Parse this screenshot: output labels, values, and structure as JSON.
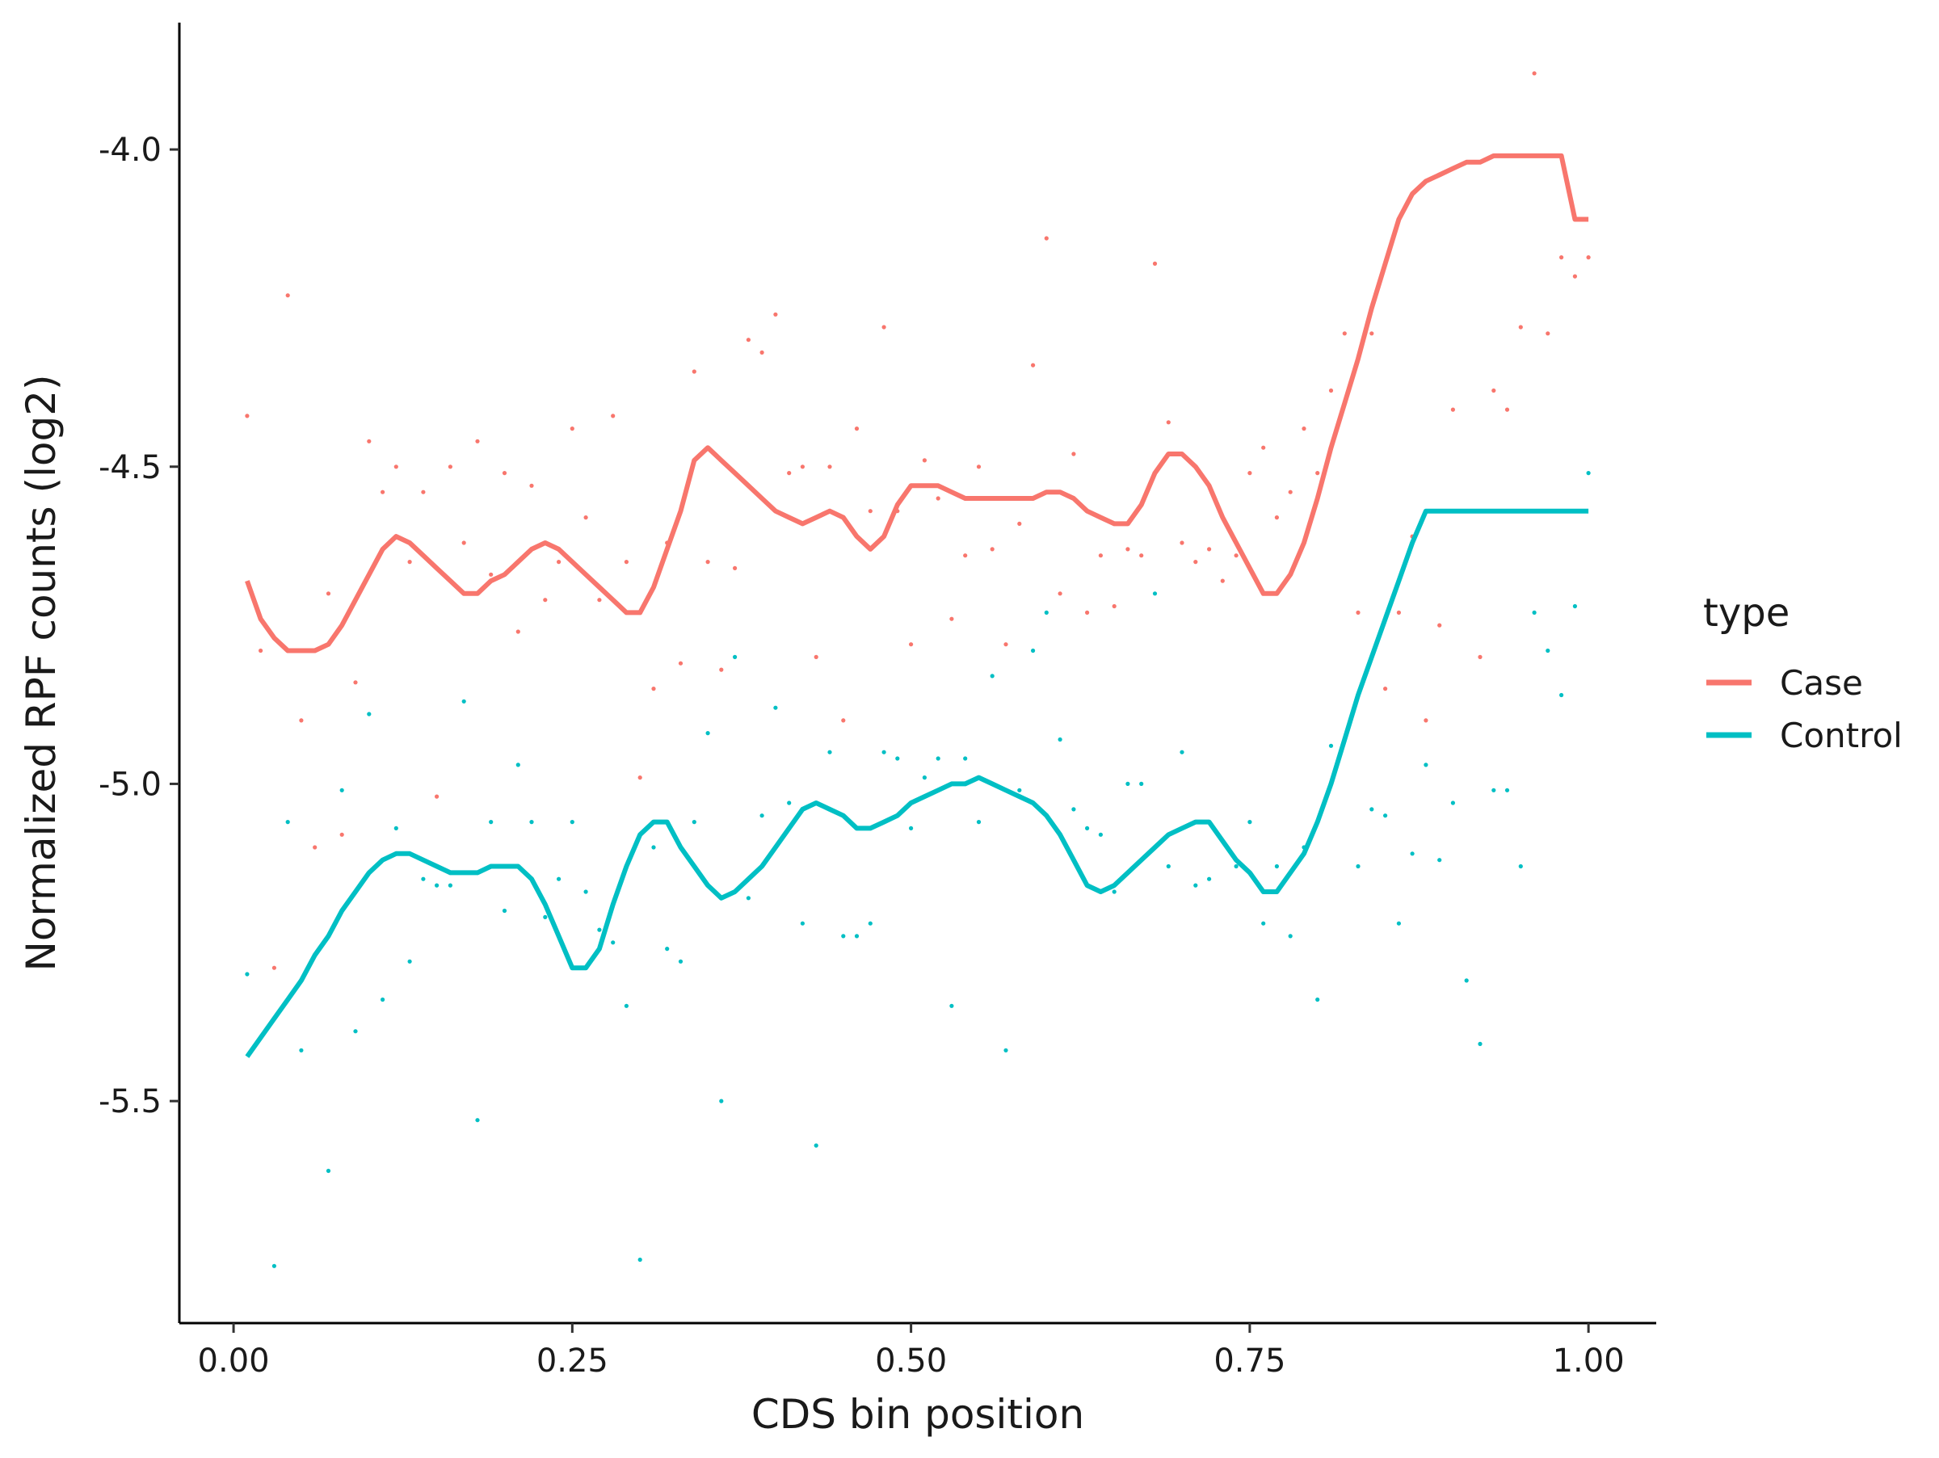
{
  "chart_data": {
    "type": "line",
    "xlabel": "CDS bin position",
    "ylabel": "Normalized RPF counts (log2)",
    "xlim": [
      -0.04,
      1.05
    ],
    "ylim": [
      -5.85,
      -3.8
    ],
    "x_ticks": [
      0.0,
      0.25,
      0.5,
      0.75,
      1.0
    ],
    "x_tick_labels": [
      "0.00",
      "0.25",
      "0.50",
      "0.75",
      "1.00"
    ],
    "y_ticks": [
      -5.5,
      -5.0,
      -4.5,
      -4.0
    ],
    "y_tick_labels": [
      "-5.5",
      "-5.0",
      "-4.5",
      "-4.0"
    ],
    "grid": false,
    "legend": {
      "title": "type",
      "position": "right",
      "entries": [
        "Case",
        "Control"
      ]
    },
    "series": [
      {
        "name": "Case",
        "color": "#F8766D",
        "line": {
          "x": [
            0.01,
            0.02,
            0.03,
            0.04,
            0.05,
            0.06,
            0.07,
            0.08,
            0.09,
            0.1,
            0.11,
            0.12,
            0.13,
            0.14,
            0.15,
            0.16,
            0.17,
            0.18,
            0.19,
            0.2,
            0.21,
            0.22,
            0.23,
            0.24,
            0.25,
            0.26,
            0.27,
            0.28,
            0.29,
            0.3,
            0.31,
            0.32,
            0.33,
            0.34,
            0.35,
            0.36,
            0.37,
            0.38,
            0.39,
            0.4,
            0.41,
            0.42,
            0.43,
            0.44,
            0.45,
            0.46,
            0.47,
            0.48,
            0.49,
            0.5,
            0.51,
            0.52,
            0.53,
            0.54,
            0.55,
            0.56,
            0.57,
            0.58,
            0.59,
            0.6,
            0.61,
            0.62,
            0.63,
            0.64,
            0.65,
            0.66,
            0.67,
            0.68,
            0.69,
            0.7,
            0.71,
            0.72,
            0.73,
            0.74,
            0.75,
            0.76,
            0.77,
            0.78,
            0.79,
            0.8,
            0.81,
            0.82,
            0.83,
            0.84,
            0.85,
            0.86,
            0.87,
            0.88,
            0.89,
            0.9,
            0.91,
            0.92,
            0.93,
            0.94,
            0.95,
            0.96,
            0.97,
            0.98,
            0.99,
            1.0
          ],
          "y": [
            -4.68,
            -4.74,
            -4.77,
            -4.79,
            -4.79,
            -4.79,
            -4.78,
            -4.75,
            -4.71,
            -4.67,
            -4.63,
            -4.61,
            -4.62,
            -4.64,
            -4.66,
            -4.68,
            -4.7,
            -4.7,
            -4.68,
            -4.67,
            -4.65,
            -4.63,
            -4.62,
            -4.63,
            -4.65,
            -4.67,
            -4.69,
            -4.71,
            -4.73,
            -4.73,
            -4.69,
            -4.63,
            -4.57,
            -4.49,
            -4.47,
            -4.49,
            -4.51,
            -4.53,
            -4.55,
            -4.57,
            -4.58,
            -4.59,
            -4.58,
            -4.57,
            -4.58,
            -4.61,
            -4.63,
            -4.61,
            -4.56,
            -4.53,
            -4.53,
            -4.53,
            -4.54,
            -4.55,
            -4.55,
            -4.55,
            -4.55,
            -4.55,
            -4.55,
            -4.54,
            -4.54,
            -4.55,
            -4.57,
            -4.58,
            -4.59,
            -4.59,
            -4.56,
            -4.51,
            -4.48,
            -4.48,
            -4.5,
            -4.53,
            -4.58,
            -4.62,
            -4.66,
            -4.7,
            -4.7,
            -4.67,
            -4.62,
            -4.55,
            -4.47,
            -4.4,
            -4.33,
            -4.25,
            -4.18,
            -4.11,
            -4.07,
            -4.05,
            -4.04,
            -4.03,
            -4.02,
            -4.02,
            -4.01,
            -4.01,
            -4.01,
            -4.01,
            -4.01,
            -4.01,
            -4.11,
            -4.11
          ]
        },
        "points": {
          "x": [
            0.01,
            0.02,
            0.03,
            0.04,
            0.05,
            0.06,
            0.07,
            0.08,
            0.09,
            0.1,
            0.11,
            0.12,
            0.13,
            0.14,
            0.15,
            0.16,
            0.17,
            0.18,
            0.19,
            0.2,
            0.21,
            0.22,
            0.23,
            0.24,
            0.25,
            0.26,
            0.27,
            0.28,
            0.29,
            0.3,
            0.31,
            0.32,
            0.33,
            0.34,
            0.35,
            0.36,
            0.37,
            0.38,
            0.39,
            0.4,
            0.41,
            0.42,
            0.43,
            0.44,
            0.45,
            0.46,
            0.47,
            0.48,
            0.49,
            0.5,
            0.51,
            0.52,
            0.53,
            0.54,
            0.55,
            0.56,
            0.57,
            0.58,
            0.59,
            0.6,
            0.61,
            0.62,
            0.63,
            0.64,
            0.65,
            0.66,
            0.67,
            0.68,
            0.69,
            0.7,
            0.71,
            0.72,
            0.73,
            0.74,
            0.75,
            0.76,
            0.77,
            0.78,
            0.79,
            0.8,
            0.81,
            0.82,
            0.83,
            0.84,
            0.85,
            0.86,
            0.87,
            0.88,
            0.89,
            0.9,
            0.91,
            0.92,
            0.93,
            0.94,
            0.95,
            0.96,
            0.97,
            0.98,
            0.99,
            1.0
          ],
          "y": [
            -4.42,
            -4.79,
            -5.29,
            -4.23,
            -4.9,
            -5.1,
            -4.7,
            -5.08,
            -4.84,
            -4.46,
            -4.54,
            -4.5,
            -4.65,
            -4.54,
            -5.02,
            -4.5,
            -4.62,
            -4.46,
            -4.67,
            -4.51,
            -4.76,
            -4.53,
            -4.71,
            -4.65,
            -4.44,
            -4.58,
            -4.71,
            -4.42,
            -4.65,
            -4.99,
            -4.85,
            -4.62,
            -4.81,
            -4.35,
            -4.65,
            -4.82,
            -4.66,
            -4.3,
            -4.32,
            -4.26,
            -4.51,
            -4.5,
            -4.8,
            -4.5,
            -4.9,
            -4.44,
            -4.57,
            -4.28,
            -4.57,
            -4.78,
            -4.49,
            -4.55,
            -4.74,
            -4.64,
            -4.5,
            -4.63,
            -4.78,
            -4.59,
            -4.34,
            -4.14,
            -4.7,
            -4.48,
            -4.73,
            -4.64,
            -4.72,
            -4.63,
            -4.64,
            -4.18,
            -4.43,
            -4.62,
            -4.65,
            -4.63,
            -4.68,
            -4.64,
            -4.51,
            -4.47,
            -4.58,
            -4.54,
            -4.44,
            -4.51,
            -4.38,
            -4.29,
            -4.73,
            -4.29,
            -4.85,
            -4.73,
            -4.61,
            -4.9,
            -4.75,
            -4.41,
            -4.57,
            -4.8,
            -4.38,
            -4.41,
            -4.28,
            -3.88,
            -4.29,
            -4.17,
            -4.2,
            -4.17
          ]
        }
      },
      {
        "name": "Control",
        "color": "#00BFC4",
        "line": {
          "x": [
            0.01,
            0.02,
            0.03,
            0.04,
            0.05,
            0.06,
            0.07,
            0.08,
            0.09,
            0.1,
            0.11,
            0.12,
            0.13,
            0.14,
            0.15,
            0.16,
            0.17,
            0.18,
            0.19,
            0.2,
            0.21,
            0.22,
            0.23,
            0.24,
            0.25,
            0.26,
            0.27,
            0.28,
            0.29,
            0.3,
            0.31,
            0.32,
            0.33,
            0.34,
            0.35,
            0.36,
            0.37,
            0.38,
            0.39,
            0.4,
            0.41,
            0.42,
            0.43,
            0.44,
            0.45,
            0.46,
            0.47,
            0.48,
            0.49,
            0.5,
            0.51,
            0.52,
            0.53,
            0.54,
            0.55,
            0.56,
            0.57,
            0.58,
            0.59,
            0.6,
            0.61,
            0.62,
            0.63,
            0.64,
            0.65,
            0.66,
            0.67,
            0.68,
            0.69,
            0.7,
            0.71,
            0.72,
            0.73,
            0.74,
            0.75,
            0.76,
            0.77,
            0.78,
            0.79,
            0.8,
            0.81,
            0.82,
            0.83,
            0.84,
            0.85,
            0.86,
            0.87,
            0.88,
            0.89,
            0.9,
            0.91,
            0.92,
            0.93,
            0.94,
            0.95,
            0.96,
            0.97,
            0.98,
            0.99,
            1.0
          ],
          "y": [
            -5.43,
            -5.4,
            -5.37,
            -5.34,
            -5.31,
            -5.27,
            -5.24,
            -5.2,
            -5.17,
            -5.14,
            -5.12,
            -5.11,
            -5.11,
            -5.12,
            -5.13,
            -5.14,
            -5.14,
            -5.14,
            -5.13,
            -5.13,
            -5.13,
            -5.15,
            -5.19,
            -5.24,
            -5.29,
            -5.29,
            -5.26,
            -5.19,
            -5.13,
            -5.08,
            -5.06,
            -5.06,
            -5.1,
            -5.13,
            -5.16,
            -5.18,
            -5.17,
            -5.15,
            -5.13,
            -5.1,
            -5.07,
            -5.04,
            -5.03,
            -5.04,
            -5.05,
            -5.07,
            -5.07,
            -5.06,
            -5.05,
            -5.03,
            -5.02,
            -5.01,
            -5.0,
            -5.0,
            -4.99,
            -5.0,
            -5.01,
            -5.02,
            -5.03,
            -5.05,
            -5.08,
            -5.12,
            -5.16,
            -5.17,
            -5.16,
            -5.14,
            -5.12,
            -5.1,
            -5.08,
            -5.07,
            -5.06,
            -5.06,
            -5.09,
            -5.12,
            -5.14,
            -5.17,
            -5.17,
            -5.14,
            -5.11,
            -5.06,
            -5.0,
            -4.93,
            -4.86,
            -4.8,
            -4.74,
            -4.68,
            -4.62,
            -4.57,
            -4.57,
            -4.57,
            -4.57,
            -4.57,
            -4.57,
            -4.57,
            -4.57,
            -4.57,
            -4.57,
            -4.57,
            -4.57,
            -4.57
          ]
        },
        "points": {
          "x": [
            0.01,
            0.02,
            0.03,
            0.04,
            0.05,
            0.06,
            0.07,
            0.08,
            0.09,
            0.1,
            0.11,
            0.12,
            0.13,
            0.14,
            0.15,
            0.16,
            0.17,
            0.18,
            0.19,
            0.2,
            0.21,
            0.22,
            0.23,
            0.24,
            0.25,
            0.26,
            0.27,
            0.28,
            0.29,
            0.3,
            0.31,
            0.32,
            0.33,
            0.34,
            0.35,
            0.36,
            0.37,
            0.38,
            0.39,
            0.4,
            0.41,
            0.42,
            0.43,
            0.44,
            0.45,
            0.46,
            0.47,
            0.48,
            0.49,
            0.5,
            0.51,
            0.52,
            0.53,
            0.54,
            0.55,
            0.56,
            0.57,
            0.58,
            0.59,
            0.6,
            0.61,
            0.62,
            0.63,
            0.64,
            0.65,
            0.66,
            0.67,
            0.68,
            0.69,
            0.7,
            0.71,
            0.72,
            0.73,
            0.74,
            0.75,
            0.76,
            0.77,
            0.78,
            0.79,
            0.8,
            0.81,
            0.82,
            0.83,
            0.84,
            0.85,
            0.86,
            0.87,
            0.88,
            0.89,
            0.9,
            0.91,
            0.92,
            0.93,
            0.94,
            0.95,
            0.96,
            0.97,
            0.98,
            0.99,
            1.0
          ],
          "y": [
            -5.3,
            -5.4,
            -5.76,
            -5.06,
            -5.42,
            -5.27,
            -5.61,
            -5.01,
            -5.39,
            -4.89,
            -5.34,
            -5.07,
            -5.28,
            -5.15,
            -5.16,
            -5.16,
            -4.87,
            -5.53,
            -5.06,
            -5.2,
            -4.97,
            -5.06,
            -5.21,
            -5.15,
            -5.06,
            -5.17,
            -5.23,
            -5.25,
            -5.35,
            -5.75,
            -5.1,
            -5.26,
            -5.28,
            -5.06,
            -4.92,
            -5.5,
            -4.8,
            -5.18,
            -5.05,
            -4.88,
            -5.03,
            -5.22,
            -5.57,
            -4.95,
            -5.24,
            -5.24,
            -5.22,
            -4.95,
            -4.96,
            -5.07,
            -4.99,
            -4.96,
            -5.35,
            -4.96,
            -5.06,
            -4.83,
            -5.42,
            -5.01,
            -4.79,
            -4.73,
            -4.93,
            -5.04,
            -5.07,
            -5.08,
            -5.17,
            -5.0,
            -5.0,
            -4.7,
            -5.13,
            -4.95,
            -5.16,
            -5.15,
            -5.09,
            -5.13,
            -5.06,
            -5.22,
            -5.13,
            -5.24,
            -5.1,
            -5.34,
            -4.94,
            -4.93,
            -5.13,
            -5.04,
            -5.05,
            -5.22,
            -5.11,
            -4.97,
            -5.12,
            -5.03,
            -5.31,
            -5.41,
            -5.01,
            -5.01,
            -5.13,
            -4.73,
            -4.79,
            -4.86,
            -4.72,
            -4.51
          ]
        }
      }
    ]
  }
}
